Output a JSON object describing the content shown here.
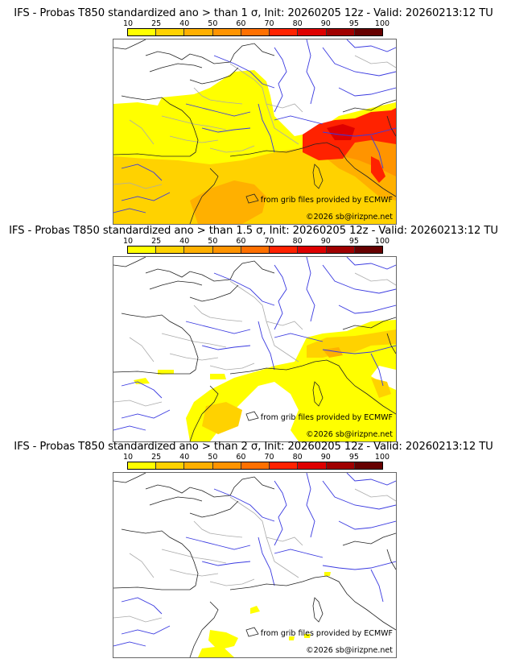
{
  "panels": [
    {
      "title": "IFS - Probas T850  standardized ano > than 1 σ, Init: 20260205 12z - Valid: 20260213:12 TU",
      "threshold_sigma": "1",
      "coverage": "wide"
    },
    {
      "title": "IFS - Probas T850  standardized ano > than 1.5 σ, Init: 20260205 12z - Valid: 20260213:12 TU",
      "threshold_sigma": "1.5",
      "coverage": "medium"
    },
    {
      "title": "IFS - Probas T850  standardized ano > than 2 σ, Init: 20260205 12z - Valid: 20260213:12 TU",
      "threshold_sigma": "2",
      "coverage": "small"
    }
  ],
  "colorbar": {
    "ticks": [
      "10",
      "25",
      "40",
      "50",
      "60",
      "70",
      "80",
      "90",
      "95",
      "100"
    ],
    "colors": [
      "#ffff00",
      "#ffd200",
      "#ffb000",
      "#ff9400",
      "#ff7000",
      "#ff2200",
      "#de0000",
      "#a00000",
      "#660000"
    ]
  },
  "credits": {
    "source": "from grib files provided by ECMWF",
    "copyright": "©2026 sb@irizpne.net"
  }
}
